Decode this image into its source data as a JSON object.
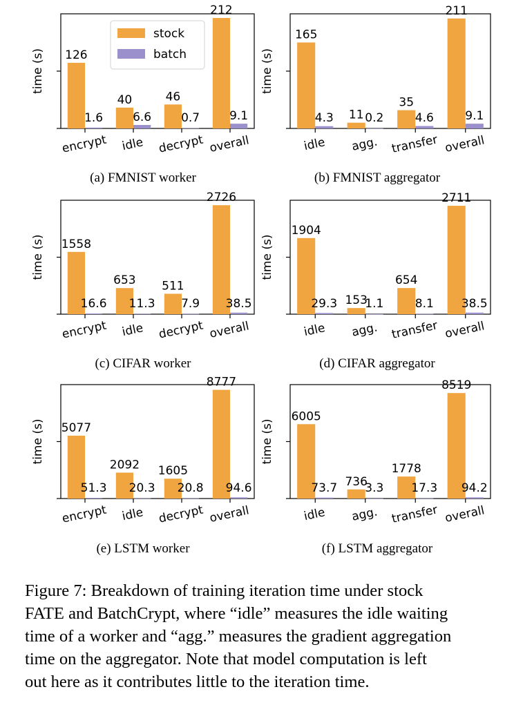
{
  "legend": {
    "stock": "stock",
    "batch": "batch"
  },
  "colors": {
    "stock": "#f0a540",
    "batch": "#9b8fcc"
  },
  "chart_data": [
    {
      "type": "bar",
      "caption": "(a) FMNIST worker",
      "ylabel": "time (s)",
      "categories": [
        "encrypt",
        "idle",
        "decrypt",
        "overall"
      ],
      "ylim": [
        0,
        220
      ],
      "series": [
        {
          "name": "stock",
          "values": [
            126,
            40,
            46,
            212
          ]
        },
        {
          "name": "batch",
          "values": [
            1.6,
            6.6,
            0.7,
            9.1
          ]
        }
      ],
      "legend_position": "top-center"
    },
    {
      "type": "bar",
      "caption": "(b) FMNIST aggregator",
      "ylabel": "time (s)",
      "categories": [
        "idle",
        "agg.",
        "transfer",
        "overall"
      ],
      "ylim": [
        0,
        220
      ],
      "series": [
        {
          "name": "stock",
          "values": [
            165,
            11,
            35,
            211
          ]
        },
        {
          "name": "batch",
          "values": [
            4.3,
            0.2,
            4.6,
            9.1
          ]
        }
      ]
    },
    {
      "type": "bar",
      "caption": "(c) CIFAR worker",
      "ylabel": "time (s)",
      "categories": [
        "encrypt",
        "idle",
        "decrypt",
        "overall"
      ],
      "ylim": [
        0,
        2850
      ],
      "series": [
        {
          "name": "stock",
          "values": [
            1558,
            653,
            511,
            2726
          ]
        },
        {
          "name": "batch",
          "values": [
            16.6,
            11.3,
            7.9,
            38.5
          ]
        }
      ]
    },
    {
      "type": "bar",
      "caption": "(d) CIFAR aggregator",
      "ylabel": "time (s)",
      "categories": [
        "idle",
        "agg.",
        "transfer",
        "overall"
      ],
      "ylim": [
        0,
        2850
      ],
      "series": [
        {
          "name": "stock",
          "values": [
            1904,
            153,
            654,
            2711
          ]
        },
        {
          "name": "batch",
          "values": [
            29.3,
            1.1,
            8.1,
            38.5
          ]
        }
      ]
    },
    {
      "type": "bar",
      "caption": "(e) LSTM worker",
      "ylabel": "time (s)",
      "categories": [
        "encrypt",
        "idle",
        "decrypt",
        "overall"
      ],
      "ylim": [
        0,
        9200
      ],
      "series": [
        {
          "name": "stock",
          "values": [
            5077,
            2092,
            1605,
            8777
          ]
        },
        {
          "name": "batch",
          "values": [
            51.3,
            20.3,
            20.8,
            94.6
          ]
        }
      ]
    },
    {
      "type": "bar",
      "caption": "(f) LSTM aggregator",
      "ylabel": "time (s)",
      "categories": [
        "idle",
        "agg.",
        "transfer",
        "overall"
      ],
      "ylim": [
        0,
        9200
      ],
      "series": [
        {
          "name": "stock",
          "values": [
            6005,
            736,
            1778,
            8519
          ]
        },
        {
          "name": "batch",
          "values": [
            73.7,
            3.3,
            17.3,
            94.2
          ]
        }
      ]
    }
  ],
  "caption_lines": [
    "Figure 7: Breakdown of training iteration time under stock",
    "FATE and BatchCrypt, where “idle” measures the idle waiting",
    "time of a worker and “agg.” measures the gradient aggregation",
    "time on the aggregator. Note that model computation is left",
    "out here as it contributes little to the iteration time."
  ]
}
